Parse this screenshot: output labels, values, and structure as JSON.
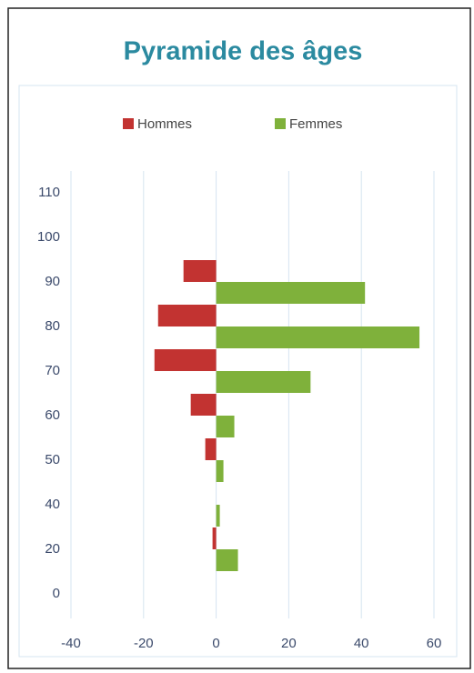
{
  "chart_data": {
    "type": "bar",
    "orientation": "horizontal",
    "title": "Pyramide des âges",
    "categories": [
      "0",
      "20",
      "40",
      "50",
      "60",
      "70",
      "80",
      "90",
      "100",
      "110"
    ],
    "series": [
      {
        "name": "Hommes",
        "color": "#c23331",
        "values": [
          0,
          -1,
          0,
          -3,
          -7,
          -17,
          -16,
          -9,
          0,
          0
        ]
      },
      {
        "name": "Femmes",
        "color": "#7fb13b",
        "values": [
          0,
          6,
          1,
          2,
          5,
          26,
          56,
          41,
          0,
          0
        ]
      }
    ],
    "xlim": [
      -40,
      60
    ],
    "xticks": [
      -40,
      -20,
      0,
      20,
      40,
      60
    ],
    "grid": true,
    "legend": "top"
  }
}
